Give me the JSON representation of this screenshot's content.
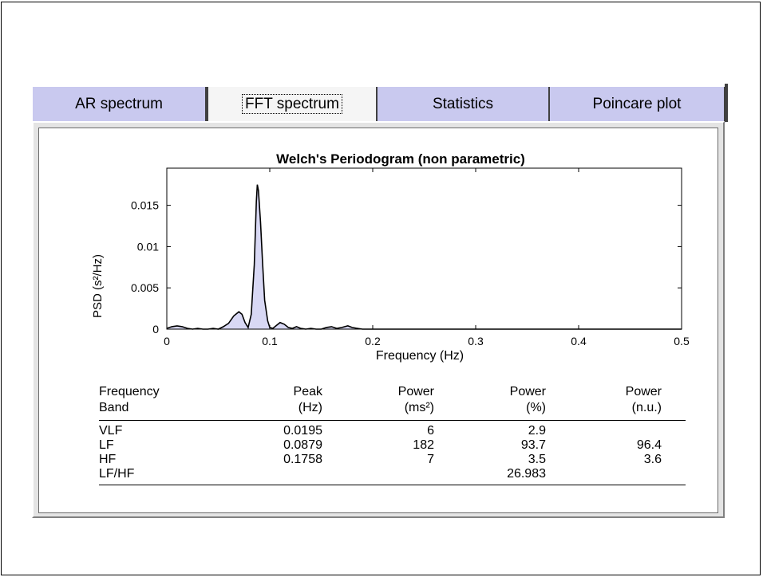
{
  "tabs": [
    {
      "label": "AR spectrum",
      "active": false
    },
    {
      "label": "FFT spectrum",
      "active": true
    },
    {
      "label": "Statistics",
      "active": false
    },
    {
      "label": "Poincare plot",
      "active": false
    }
  ],
  "chart_data": {
    "type": "area",
    "title": "Welch's Periodogram (non parametric)",
    "xlabel": "Frequency (Hz)",
    "ylabel": "PSD (s²/Hz)",
    "xlim": [
      0,
      0.5
    ],
    "ylim": [
      0,
      0.0195
    ],
    "xticks": [
      "0",
      "0.1",
      "0.2",
      "0.3",
      "0.4",
      "0.5"
    ],
    "yticks": [
      "0",
      "0.005",
      "0.01",
      "0.015"
    ],
    "grid": false,
    "fill_color": "#d8d8f4",
    "line_color": "#000000",
    "x": [
      0,
      0.005,
      0.01,
      0.015,
      0.02,
      0.025,
      0.03,
      0.035,
      0.04,
      0.045,
      0.05,
      0.055,
      0.06,
      0.065,
      0.07,
      0.073,
      0.076,
      0.079,
      0.082,
      0.085,
      0.087,
      0.0879,
      0.089,
      0.091,
      0.093,
      0.095,
      0.098,
      0.1,
      0.103,
      0.106,
      0.11,
      0.114,
      0.118,
      0.122,
      0.126,
      0.13,
      0.135,
      0.14,
      0.145,
      0.15,
      0.155,
      0.16,
      0.165,
      0.17,
      0.1758,
      0.18,
      0.185,
      0.19,
      0.2,
      0.25,
      0.3,
      0.35,
      0.4,
      0.45,
      0.5
    ],
    "y": [
      0.0001,
      0.0003,
      0.0004,
      0.0003,
      0.0001,
      0.0,
      0.0001,
      0.0,
      0.0,
      0.0001,
      0.0,
      0.0003,
      0.0007,
      0.0016,
      0.0021,
      0.0018,
      0.0008,
      0.0002,
      0.0018,
      0.0078,
      0.0155,
      0.0175,
      0.0168,
      0.013,
      0.008,
      0.0035,
      0.001,
      0.0002,
      0.0001,
      0.0004,
      0.0008,
      0.0006,
      0.0002,
      0.0001,
      0.0003,
      0.0001,
      0.0,
      0.0001,
      0.0,
      0.0,
      0.0002,
      0.0003,
      0.0001,
      0.0002,
      0.0004,
      0.0002,
      0.0001,
      0.0,
      0.0,
      0.0,
      0.0,
      0.0,
      0.0,
      0.0,
      0.0
    ]
  },
  "table": {
    "headers": [
      {
        "line1": "Frequency",
        "line2": "Band"
      },
      {
        "line1": "Peak",
        "line2": "(Hz)"
      },
      {
        "line1": "Power",
        "line2": "(ms²)"
      },
      {
        "line1": "Power",
        "line2": "(%)"
      },
      {
        "line1": "Power",
        "line2": "(n.u.)"
      }
    ],
    "rows": [
      [
        "VLF",
        "0.0195",
        "6",
        "2.9",
        ""
      ],
      [
        "LF",
        "0.0879",
        "182",
        "93.7",
        "96.4"
      ],
      [
        "HF",
        "0.1758",
        "7",
        "3.5",
        "3.6"
      ],
      [
        "LF/HF",
        "",
        "",
        "26.983",
        ""
      ]
    ]
  }
}
